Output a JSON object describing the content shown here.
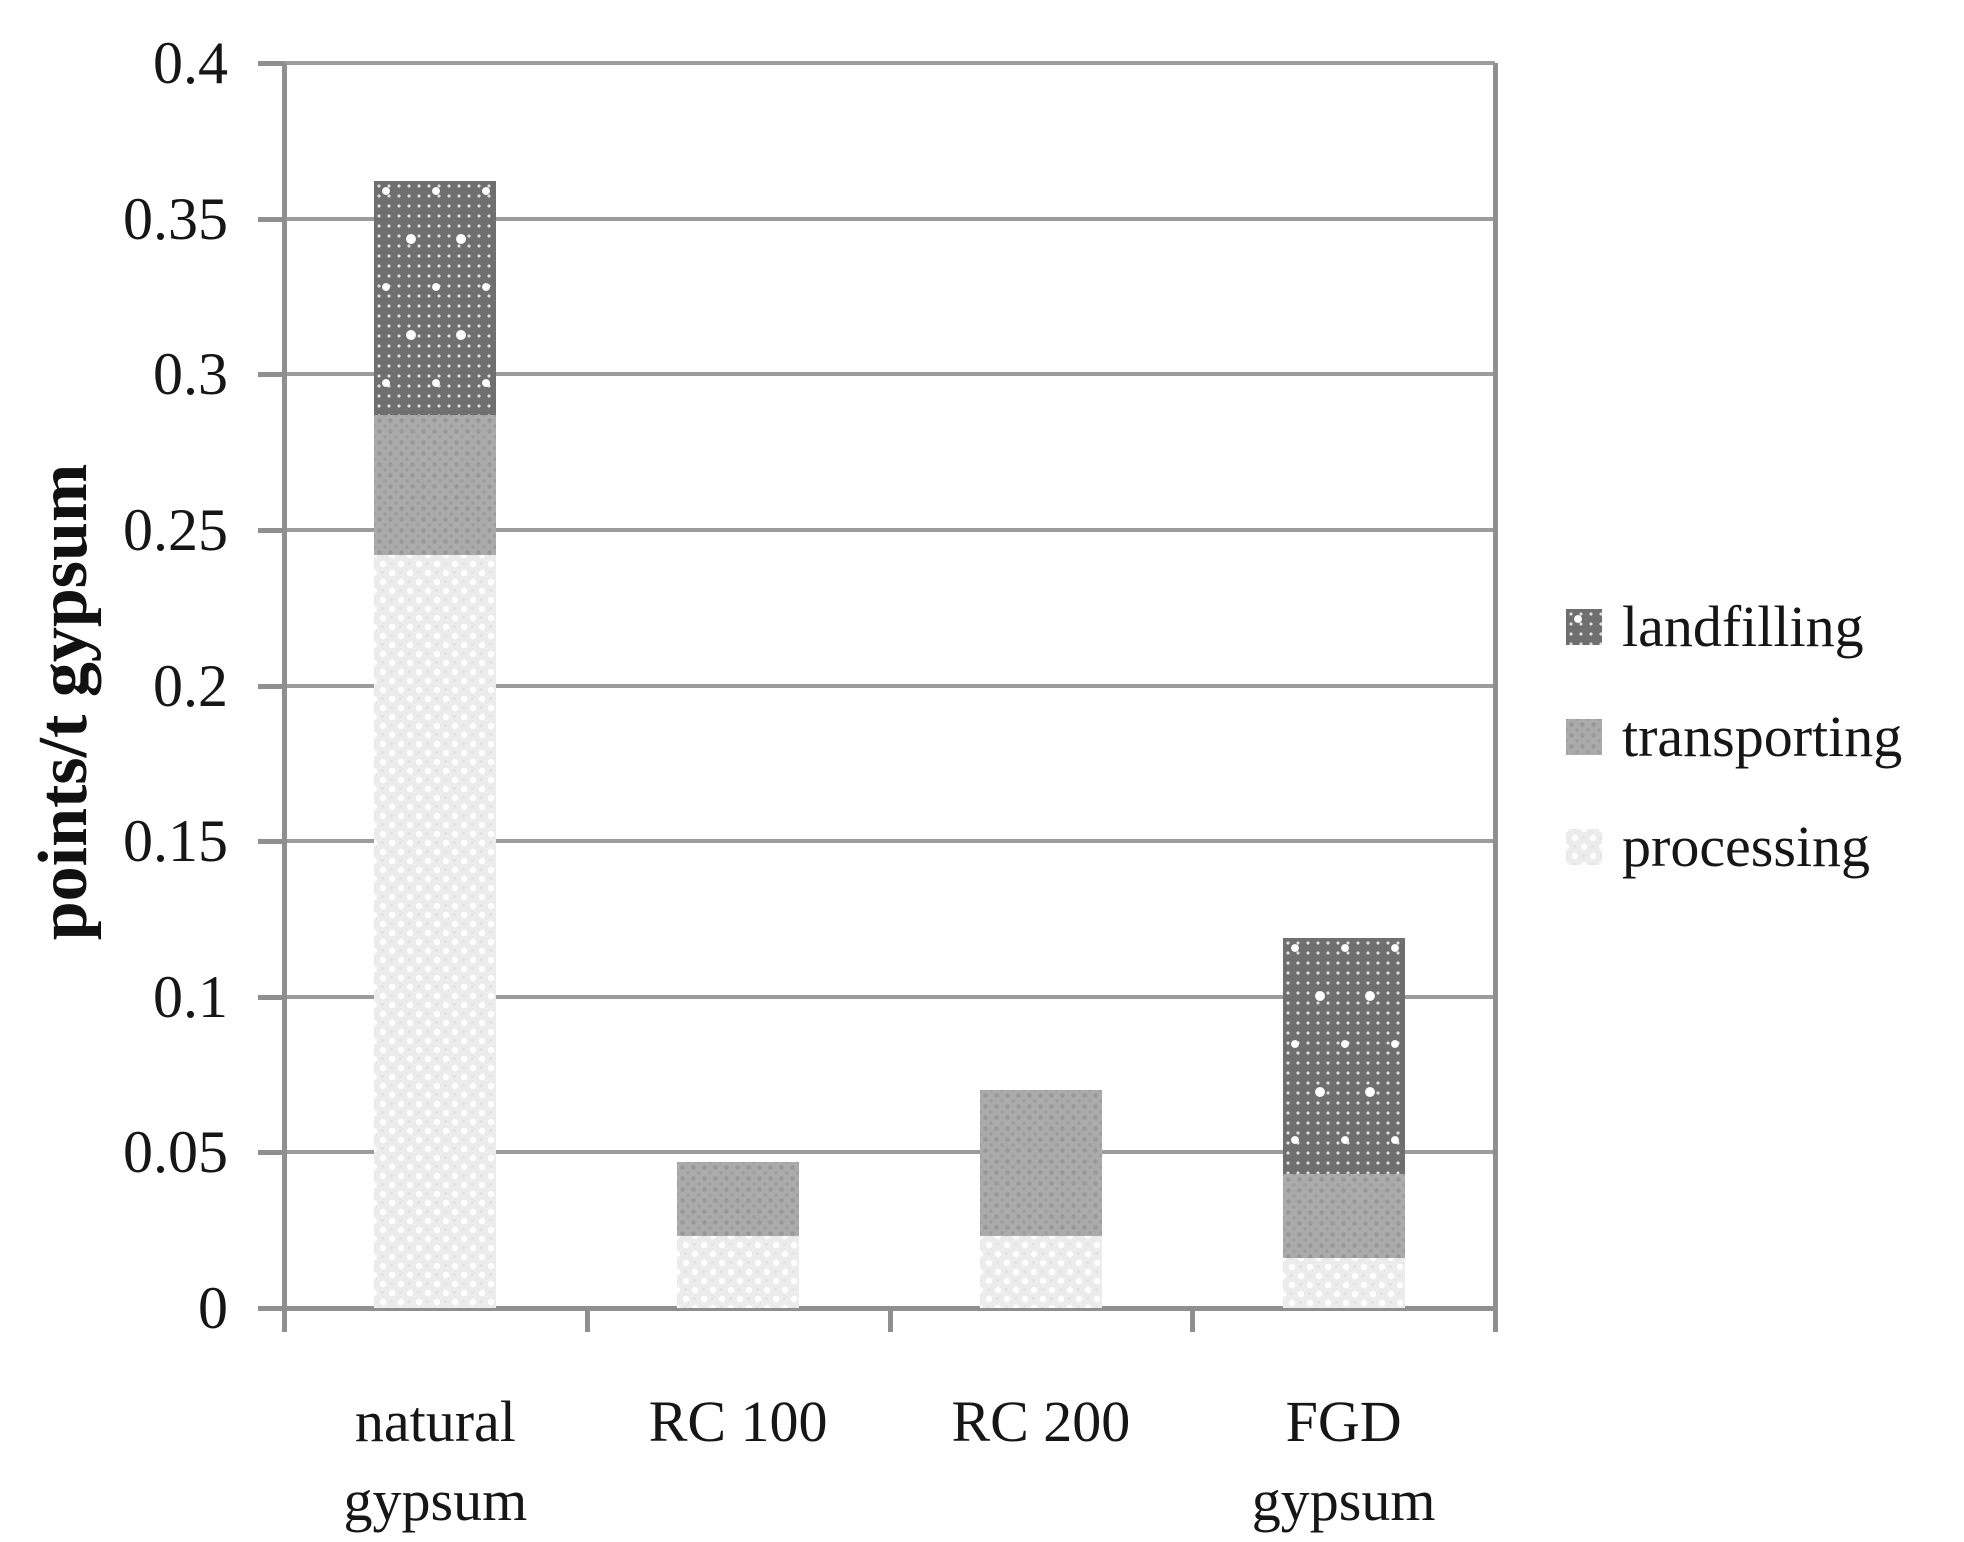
{
  "chart_data": {
    "type": "bar",
    "stacked": true,
    "title": "",
    "ylabel": "points/t gypsum",
    "xlabel": "",
    "ylim": [
      0,
      0.4
    ],
    "ytick_step": 0.05,
    "ytick_labels": [
      "0",
      "0.05",
      "0.1",
      "0.15",
      "0.2",
      "0.25",
      "0.3",
      "0.35",
      "0.4"
    ],
    "grid": true,
    "legend_position": "right",
    "categories": [
      "natural gypsum",
      "RC 100",
      "RC 200",
      "FGD gypsum"
    ],
    "category_label_lines": [
      [
        "natural",
        "gypsum"
      ],
      [
        "RC 100"
      ],
      [
        "RC 200"
      ],
      [
        "FGD",
        "gypsum"
      ]
    ],
    "series": [
      {
        "name": "processing",
        "values": [
          0.242,
          0.023,
          0.023,
          0.016
        ]
      },
      {
        "name": "transporting",
        "values": [
          0.045,
          0.024,
          0.047,
          0.027
        ]
      },
      {
        "name": "landfilling",
        "values": [
          0.075,
          0,
          0,
          0.076
        ]
      }
    ],
    "stack_totals": [
      0.362,
      0.047,
      0.07,
      0.119
    ],
    "legend": [
      "landfilling",
      "transporting",
      "processing"
    ]
  },
  "colors": {
    "landfilling": "#6f6f6f",
    "transporting": "#ababab",
    "processing": "#ececec",
    "gridline": "#9c9c9c",
    "axis": "#8f8f8f",
    "text": "#161616",
    "background": "#ffffff"
  }
}
